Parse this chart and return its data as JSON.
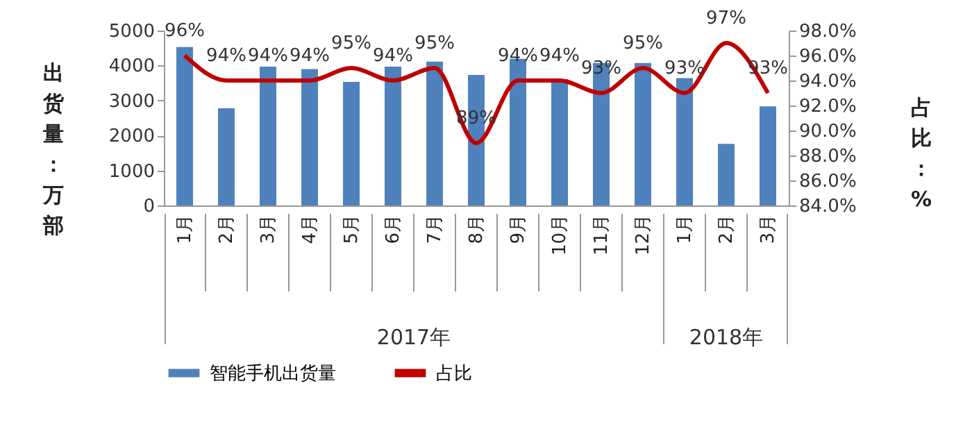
{
  "chart_data": {
    "type": "bar",
    "ylabel": "出货量：万部",
    "y2label": "占比：%",
    "categories": [
      "1月",
      "2月",
      "3月",
      "4月",
      "5月",
      "6月",
      "7月",
      "8月",
      "9月",
      "10月",
      "11月",
      "12月",
      "1月",
      "2月",
      "3月"
    ],
    "series": [
      {
        "name": "智能手机出货量",
        "color": "#4f81bd",
        "values": [
          4530,
          2780,
          3970,
          3900,
          3530,
          3970,
          4110,
          3730,
          4190,
          3610,
          4070,
          4070,
          3640,
          1760,
          2830
        ]
      },
      {
        "name": "占比",
        "type": "line",
        "axis": "y2",
        "color": "#c00000",
        "values": [
          96,
          94,
          94,
          94,
          95,
          94,
          95,
          89,
          94,
          94,
          93,
          95,
          93,
          97,
          93
        ],
        "value_labels": [
          "96%",
          "94%",
          "94%",
          "94%",
          "95%",
          "94%",
          "95%",
          "89%",
          "94%",
          "94%",
          "93%",
          "95%",
          "93%",
          "97%",
          "93%"
        ]
      }
    ],
    "ylim": [
      0,
      5000
    ],
    "yticks": [
      0,
      1000,
      2000,
      3000,
      4000,
      5000
    ],
    "y2lim": [
      84,
      98
    ],
    "y2ticks": [
      {
        "value": 84,
        "label": "84.0%"
      },
      {
        "value": 86,
        "label": "86.0%"
      },
      {
        "value": 88,
        "label": "88.0%"
      },
      {
        "value": 90,
        "label": "90.0%"
      },
      {
        "value": 92,
        "label": "92.0%"
      },
      {
        "value": 94,
        "label": "94.0%"
      },
      {
        "value": 96,
        "label": "96.0%"
      },
      {
        "value": 98,
        "label": "98.0%"
      }
    ],
    "annotations": [
      "2017年",
      "2018年"
    ],
    "grid": false,
    "legend": "bottom",
    "marker": "none",
    "line_style": "solid"
  }
}
